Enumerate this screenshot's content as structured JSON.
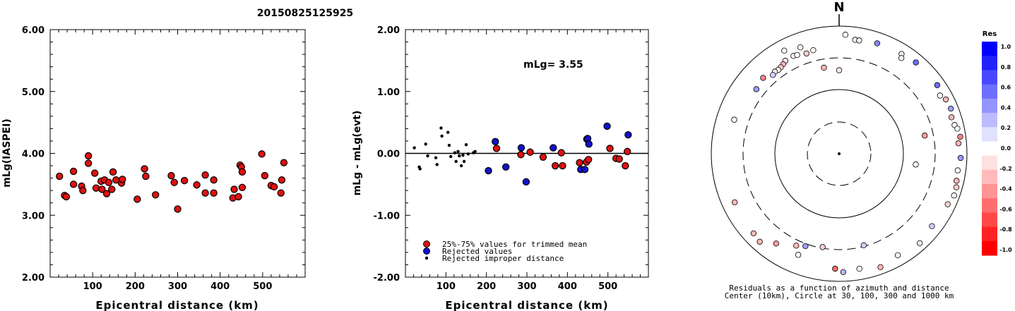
{
  "figure_title": "20150825125925",
  "chart_data": [
    {
      "type": "scatter",
      "id": "left",
      "xlabel": "Epicentral distance (km)",
      "ylabel": "mLg(IASPEI)",
      "xlim": [
        0,
        600
      ],
      "ylim": [
        2.0,
        6.0
      ],
      "xticks": [
        100,
        200,
        300,
        400,
        500
      ],
      "yticks": [
        "2.00",
        "3.00",
        "4.00",
        "5.00",
        "6.00"
      ],
      "points": [
        [
          22,
          3.63
        ],
        [
          34,
          3.32
        ],
        [
          38,
          3.3
        ],
        [
          55,
          3.71
        ],
        [
          55,
          3.5
        ],
        [
          74,
          3.47
        ],
        [
          77,
          3.4
        ],
        [
          90,
          3.96
        ],
        [
          90,
          3.84
        ],
        [
          105,
          3.68
        ],
        [
          108,
          3.44
        ],
        [
          120,
          3.55
        ],
        [
          122,
          3.42
        ],
        [
          128,
          3.57
        ],
        [
          133,
          3.35
        ],
        [
          138,
          3.53
        ],
        [
          145,
          3.42
        ],
        [
          148,
          3.7
        ],
        [
          155,
          3.57
        ],
        [
          168,
          3.52
        ],
        [
          170,
          3.58
        ],
        [
          205,
          3.26
        ],
        [
          222,
          3.75
        ],
        [
          225,
          3.63
        ],
        [
          248,
          3.33
        ],
        [
          285,
          3.64
        ],
        [
          292,
          3.53
        ],
        [
          300,
          3.1
        ],
        [
          316,
          3.56
        ],
        [
          345,
          3.49
        ],
        [
          365,
          3.65
        ],
        [
          365,
          3.36
        ],
        [
          385,
          3.57
        ],
        [
          385,
          3.36
        ],
        [
          430,
          3.28
        ],
        [
          433,
          3.42
        ],
        [
          443,
          3.3
        ],
        [
          447,
          3.81
        ],
        [
          450,
          3.78
        ],
        [
          452,
          3.7
        ],
        [
          452,
          3.45
        ],
        [
          498,
          3.99
        ],
        [
          505,
          3.64
        ],
        [
          520,
          3.48
        ],
        [
          527,
          3.46
        ],
        [
          543,
          3.36
        ],
        [
          545,
          3.57
        ],
        [
          550,
          3.85
        ]
      ]
    },
    {
      "type": "scatter",
      "id": "middle",
      "xlabel": "Epicentral distance (km)",
      "ylabel": "mLg - mLg(evt)",
      "xlim": [
        0,
        600
      ],
      "ylim": [
        -2.0,
        2.0
      ],
      "xticks": [
        100,
        200,
        300,
        400,
        500
      ],
      "yticks": [
        "-2.00",
        "-1.00",
        "0.00",
        "1.00",
        "2.00"
      ],
      "annotation": "mLg= 3.55",
      "series": [
        {
          "name": "25%-75% values for trimmed mean",
          "color": "#dd1111",
          "points": [
            [
              225,
              0.08
            ],
            [
              285,
              -0.02
            ],
            [
              308,
              0.02
            ],
            [
              340,
              -0.06
            ],
            [
              370,
              -0.2
            ],
            [
              385,
              0.01
            ],
            [
              388,
              -0.2
            ],
            [
              430,
              -0.15
            ],
            [
              447,
              -0.14
            ],
            [
              452,
              -0.1
            ],
            [
              505,
              0.08
            ],
            [
              520,
              -0.08
            ],
            [
              528,
              -0.09
            ],
            [
              543,
              -0.2
            ],
            [
              548,
              0.03
            ]
          ]
        },
        {
          "name": "Rejected values",
          "color": "#1111cc",
          "points": [
            [
              205,
              -0.28
            ],
            [
              222,
              0.19
            ],
            [
              248,
              -0.22
            ],
            [
              286,
              0.09
            ],
            [
              298,
              -0.46
            ],
            [
              365,
              0.09
            ],
            [
              433,
              -0.26
            ],
            [
              443,
              -0.26
            ],
            [
              448,
              0.23
            ],
            [
              450,
              0.24
            ],
            [
              453,
              0.15
            ],
            [
              498,
              0.44
            ],
            [
              550,
              0.3
            ]
          ]
        },
        {
          "name": "Rejected improper distance",
          "color": "#000000",
          "points": [
            [
              22,
              0.09
            ],
            [
              34,
              -0.22
            ],
            [
              36,
              -0.25
            ],
            [
              50,
              0.15
            ],
            [
              55,
              -0.04
            ],
            [
              75,
              -0.07
            ],
            [
              78,
              -0.18
            ],
            [
              88,
              0.41
            ],
            [
              90,
              0.28
            ],
            [
              105,
              0.34
            ],
            [
              108,
              0.13
            ],
            [
              112,
              -0.05
            ],
            [
              122,
              0.01
            ],
            [
              125,
              -0.13
            ],
            [
              130,
              0.03
            ],
            [
              133,
              -0.04
            ],
            [
              138,
              -0.2
            ],
            [
              142,
              -0.03
            ],
            [
              145,
              -0.13
            ],
            [
              150,
              0.14
            ],
            [
              155,
              -0.01
            ],
            [
              168,
              0.01
            ],
            [
              172,
              0.03
            ]
          ]
        }
      ]
    },
    {
      "type": "polar",
      "id": "azimuth",
      "north_label": "N",
      "caption_line1": "Residuals as a function of azimuth and distance",
      "caption_line2": "Center (10km), Circle at 30, 100, 300 and 1000 km",
      "rings_km": [
        30,
        100,
        300,
        1000
      ],
      "colorbar_title": "Res",
      "colorbar_ticks": [
        "1.0",
        "0.8",
        "0.6",
        "0.4",
        "0.2",
        "0.0",
        "-0.2",
        "-0.4",
        "-0.6",
        "-0.8",
        "-1.0"
      ],
      "colorbar_colors": [
        "#0000ff",
        "#2222ff",
        "#4848ff",
        "#6e6eff",
        "#9494ff",
        "#bbbbff",
        "#e0e0ff",
        "#ffffff",
        "#ffe0e0",
        "#ffbbbb",
        "#ff9494",
        "#ff6e6e",
        "#ff4848",
        "#ff2222",
        "#ff0000"
      ],
      "stations": [
        {
          "az": 3,
          "d": 720,
          "res": 0.0
        },
        {
          "az": 19,
          "d": 660,
          "res": 0.5
        },
        {
          "az": 8,
          "d": 620,
          "res": -0.05
        },
        {
          "az": 10,
          "d": 620,
          "res": -0.05
        },
        {
          "az": -28,
          "d": 660,
          "res": 0.0
        },
        {
          "az": -20,
          "d": 580,
          "res": 0.0
        },
        {
          "az": 32,
          "d": 680,
          "res": 0.05
        },
        {
          "az": 40,
          "d": 720,
          "res": 0.6
        },
        {
          "az": 33,
          "d": 600,
          "res": -0.05
        },
        {
          "az": -25,
          "d": 480,
          "res": -0.05
        },
        {
          "az": -23,
          "d": 470,
          "res": 0.0
        },
        {
          "az": -14,
          "d": 460,
          "res": 0.0
        },
        {
          "az": -18,
          "d": 440,
          "res": -0.2
        },
        {
          "az": -30,
          "d": 470,
          "res": -0.1
        },
        {
          "az": -32,
          "d": 440,
          "res": -0.3
        },
        {
          "az": -34,
          "d": 420,
          "res": -0.2
        },
        {
          "az": -36,
          "d": 410,
          "res": 0.0
        },
        {
          "az": -38,
          "d": 420,
          "res": -0.1
        },
        {
          "az": -40,
          "d": 400,
          "res": 0.2
        },
        {
          "az": -45,
          "d": 470,
          "res": -0.5
        },
        {
          "az": -52,
          "d": 430,
          "res": 0.4
        },
        {
          "az": -72,
          "d": 520,
          "res": 0.0
        },
        {
          "az": -10,
          "d": 230,
          "res": -0.3
        },
        {
          "az": 0,
          "d": 200,
          "res": -0.1
        },
        {
          "az": 60,
          "d": 650,
          "res": 0.0
        },
        {
          "az": 55,
          "d": 730,
          "res": 0.6
        },
        {
          "az": 63,
          "d": 730,
          "res": -0.3
        },
        {
          "az": 68,
          "d": 750,
          "res": 0.4
        },
        {
          "az": 72,
          "d": 690,
          "res": -0.3
        },
        {
          "az": 76,
          "d": 710,
          "res": 0.0
        },
        {
          "az": 78,
          "d": 760,
          "res": 0.0
        },
        {
          "az": 82,
          "d": 800,
          "res": -0.5
        },
        {
          "az": 85,
          "d": 730,
          "res": -0.3
        },
        {
          "az": 92,
          "d": 780,
          "res": 0.4
        },
        {
          "az": 98,
          "d": 730,
          "res": 0.0
        },
        {
          "az": 103,
          "d": 750,
          "res": -0.3
        },
        {
          "az": 106,
          "d": 790,
          "res": -0.2
        },
        {
          "az": 110,
          "d": 800,
          "res": 0.0
        },
        {
          "az": 115,
          "d": 730,
          "res": -0.2
        },
        {
          "az": 128,
          "d": 680,
          "res": 0.2
        },
        {
          "az": 138,
          "d": 750,
          "res": 0.1
        },
        {
          "az": 150,
          "d": 670,
          "res": 0.0
        },
        {
          "az": 160,
          "d": 760,
          "res": -0.3
        },
        {
          "az": 170,
          "d": 660,
          "res": 0.0
        },
        {
          "az": 182,
          "d": 620,
          "res": -0.6
        },
        {
          "az": 178,
          "d": 700,
          "res": 0.3
        },
        {
          "az": 98,
          "d": 160,
          "res": 0.0
        },
        {
          "az": 78,
          "d": 230,
          "res": -0.4
        },
        {
          "az": 165,
          "d": 300,
          "res": 0.2
        },
        {
          "az": 190,
          "d": 300,
          "res": -0.2
        },
        {
          "az": 200,
          "d": 340,
          "res": 0.4
        },
        {
          "az": 205,
          "d": 380,
          "res": -0.3
        },
        {
          "az": 202,
          "d": 500,
          "res": 0.0
        },
        {
          "az": 215,
          "d": 510,
          "res": -0.4
        },
        {
          "az": 222,
          "d": 700,
          "res": -0.3
        },
        {
          "az": 227,
          "d": 660,
          "res": -0.3
        },
        {
          "az": 245,
          "d": 620,
          "res": -0.3
        }
      ]
    }
  ]
}
